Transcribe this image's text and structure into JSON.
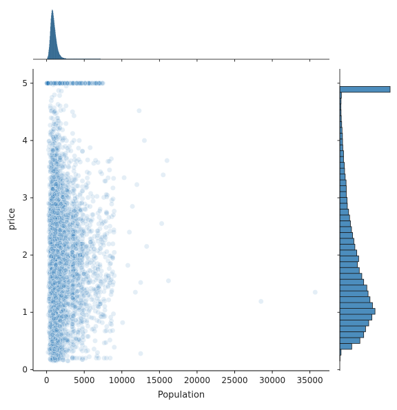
{
  "chart_data": {
    "type": "scatter",
    "title": "",
    "xlabel": "Population",
    "ylabel": "price",
    "xlim": [
      -1800,
      37600
    ],
    "ylim": [
      -0.02,
      5.25
    ],
    "xticks": [
      0,
      5000,
      10000,
      15000,
      20000,
      25000,
      30000,
      35000
    ],
    "yticks": [
      0,
      1,
      2,
      3,
      4,
      5
    ],
    "grid": false,
    "legend": "none",
    "point_color": "#1f77b4",
    "point_alpha": 0.12,
    "bar_color": "#4c8dbd",
    "marginal_x": {
      "type": "histogram",
      "bin_width": 35.7,
      "start": 0,
      "counts": [
        0,
        0,
        2,
        4,
        6,
        8,
        12,
        18,
        24,
        30,
        38,
        48,
        58,
        70,
        82,
        92,
        102,
        110,
        116,
        121,
        124,
        125,
        123,
        120,
        116,
        110,
        104,
        98,
        92,
        86,
        80,
        74,
        68,
        62,
        57,
        52,
        47,
        42,
        38,
        34,
        30,
        27,
        24,
        21,
        19,
        17,
        15,
        13,
        12,
        11,
        10,
        9,
        8,
        7,
        6,
        6,
        5,
        5,
        4,
        4,
        4,
        3,
        3,
        3,
        3,
        2,
        2,
        2,
        2,
        2,
        2,
        2,
        1,
        1,
        1,
        1,
        1,
        1,
        1,
        1,
        1,
        1,
        1,
        1,
        1,
        1,
        1,
        1,
        1,
        1,
        1,
        1,
        1,
        1,
        1,
        1,
        1,
        1,
        1,
        1,
        1,
        1,
        1,
        1,
        1,
        1,
        1,
        1,
        1,
        1,
        1,
        1,
        1,
        1,
        1,
        1,
        1,
        1,
        1,
        1,
        1,
        1,
        1,
        1,
        1,
        1,
        1,
        1,
        1,
        1,
        1,
        1,
        1,
        1,
        1,
        1,
        1,
        1,
        1,
        1,
        1,
        1,
        1,
        1,
        1,
        1,
        1,
        1,
        1,
        1,
        1,
        1,
        1,
        1,
        1,
        1,
        1,
        1,
        1,
        1,
        1,
        1,
        1,
        1,
        1,
        1,
        1,
        1,
        1,
        1,
        1,
        1,
        1,
        1,
        1,
        1,
        1,
        1,
        1,
        1,
        1,
        1,
        1,
        1,
        1,
        1,
        1,
        1,
        1,
        1,
        1,
        1,
        1,
        1,
        1,
        1,
        1,
        1,
        1,
        1,
        1
      ]
    },
    "marginal_y": {
      "type": "histogram",
      "bin_edges_start": 0.15,
      "bin_width": 0.102,
      "counts": [
        2,
        10,
        95,
        160,
        190,
        205,
        230,
        255,
        280,
        260,
        240,
        225,
        215,
        190,
        175,
        155,
        140,
        150,
        135,
        120,
        112,
        102,
        93,
        85,
        78,
        70,
        60,
        58,
        52,
        52,
        50,
        43,
        38,
        36,
        30,
        30,
        24,
        22,
        21,
        18,
        15,
        12,
        10,
        9,
        10,
        13,
        400
      ]
    },
    "series": [
      {
        "type": "cluster",
        "count": 3800,
        "x_range": [
          80,
          3400
        ],
        "y_range": [
          0.15,
          5.0
        ]
      },
      {
        "type": "scatter_tail",
        "count": 700,
        "x_range": [
          3400,
          9000
        ],
        "y_range": [
          0.2,
          4.5
        ]
      },
      {
        "type": "capped",
        "count": 180,
        "y_value": 5.0,
        "x_range": [
          50,
          7500
        ]
      },
      {
        "type": "outliers",
        "points": [
          {
            "x": 12500,
            "y": 0.28
          },
          {
            "x": 12300,
            "y": 4.52
          },
          {
            "x": 13000,
            "y": 4.0
          },
          {
            "x": 15500,
            "y": 3.4
          },
          {
            "x": 16000,
            "y": 3.65
          },
          {
            "x": 15300,
            "y": 2.55
          },
          {
            "x": 16200,
            "y": 1.55
          },
          {
            "x": 13300,
            "y": 2.15
          },
          {
            "x": 12000,
            "y": 3.23
          },
          {
            "x": 12500,
            "y": 1.52
          },
          {
            "x": 11800,
            "y": 1.35
          },
          {
            "x": 28500,
            "y": 1.19
          },
          {
            "x": 35700,
            "y": 1.35
          },
          {
            "x": 10300,
            "y": 3.35
          },
          {
            "x": 11000,
            "y": 2.4
          },
          {
            "x": 10100,
            "y": 0.82
          },
          {
            "x": 10800,
            "y": 1.82
          },
          {
            "x": 11400,
            "y": 2.85
          }
        ]
      }
    ]
  }
}
